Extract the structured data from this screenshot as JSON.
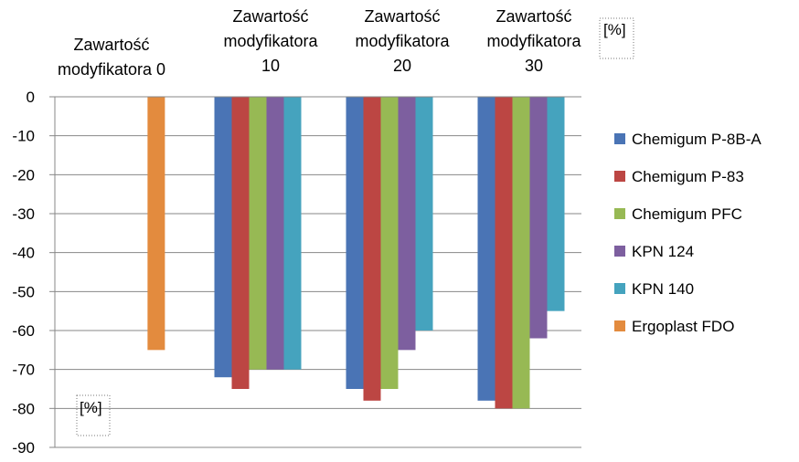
{
  "chart_data": {
    "type": "bar",
    "categories": [
      [
        "Zawartość",
        "modyfikatora 0"
      ],
      [
        "Zawartość",
        "modyfikatora",
        "10"
      ],
      [
        "Zawartość",
        "modyfikatora",
        "20"
      ],
      [
        "Zawartość",
        "modyfikatora",
        "30"
      ]
    ],
    "series": [
      {
        "name": "Chemigum P-8B-A",
        "color": "#4A74B5",
        "values": [
          null,
          -72,
          -75,
          -78
        ]
      },
      {
        "name": "Chemigum P-83",
        "color": "#BC4643",
        "values": [
          null,
          -75,
          -78,
          -80
        ]
      },
      {
        "name": "Chemigum PFC",
        "color": "#97B954",
        "values": [
          null,
          -70,
          -75,
          -80
        ]
      },
      {
        "name": "KPN 124",
        "color": "#7D5F9F",
        "values": [
          null,
          -70,
          -65,
          -62
        ]
      },
      {
        "name": "KPN 140",
        "color": "#45A3BE",
        "values": [
          null,
          -70,
          -60,
          -55
        ]
      },
      {
        "name": "Ergoplast FDO",
        "color": "#E38B3E",
        "values": [
          -65,
          null,
          null,
          null
        ]
      }
    ],
    "ylim": [
      -90,
      0
    ],
    "yticks": [
      0,
      -10,
      -20,
      -30,
      -40,
      -50,
      -60,
      -70,
      -80,
      -90
    ],
    "unit_labels": [
      "[%]",
      "[%]"
    ],
    "grid": true,
    "legend_position": "right",
    "x_axis_position": "top"
  }
}
